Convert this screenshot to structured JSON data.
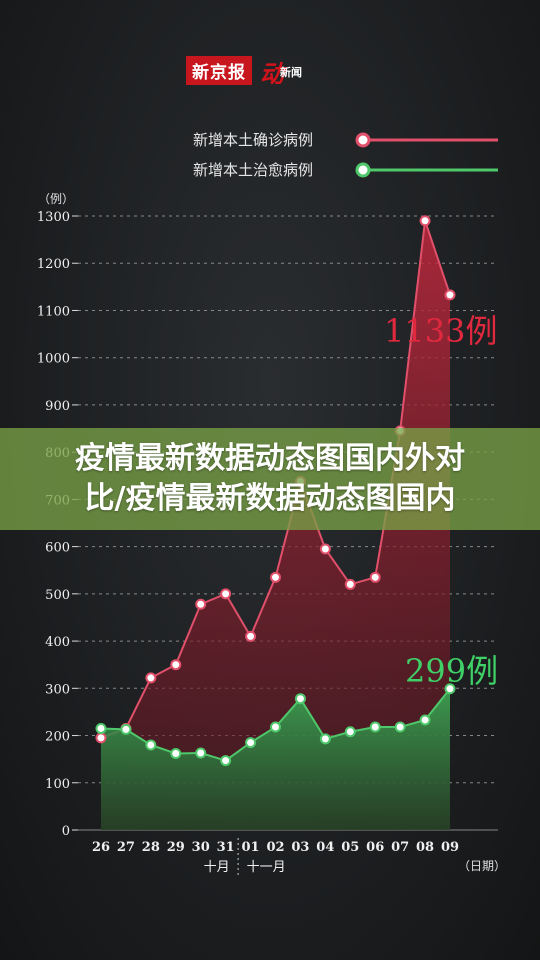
{
  "logo": {
    "name": "新京报",
    "dong_glyph": "动",
    "xinwen": "新闻"
  },
  "banner": {
    "line1": "疫情最新数据动态图国内外对",
    "line2": "比/疫情最新数据动态图国内"
  },
  "colors": {
    "confirmed": "#e0506a",
    "cured": "#4ec86a",
    "grid": "#aaaaaa"
  },
  "chart_data": {
    "type": "area",
    "title": "",
    "ylabel": "（例）",
    "xlabel": "（日期）",
    "ylim": [
      0,
      1300
    ],
    "yticks": [
      0,
      100,
      200,
      300,
      400,
      500,
      600,
      700,
      800,
      900,
      1000,
      1100,
      1200,
      1300
    ],
    "categories": [
      "26",
      "27",
      "28",
      "29",
      "30",
      "31",
      "01",
      "02",
      "03",
      "04",
      "05",
      "06",
      "07",
      "08",
      "09"
    ],
    "month_labels": [
      {
        "text": "十月",
        "at": "31"
      },
      {
        "text": "十一月",
        "at": "01"
      }
    ],
    "series": [
      {
        "name": "新增本土确诊病例",
        "values": [
          195,
          215,
          322,
          350,
          478,
          500,
          410,
          535,
          738,
          595,
          520,
          535,
          845,
          1290,
          1133
        ]
      },
      {
        "name": "新增本土治愈病例",
        "values": [
          215,
          213,
          180,
          162,
          163,
          147,
          185,
          218,
          278,
          193,
          208,
          218,
          218,
          233,
          299
        ]
      }
    ],
    "annotations": [
      {
        "text": "1133例",
        "series": 0
      },
      {
        "text": "299例",
        "series": 1
      }
    ],
    "legend_position": "top-right",
    "grid": true
  }
}
